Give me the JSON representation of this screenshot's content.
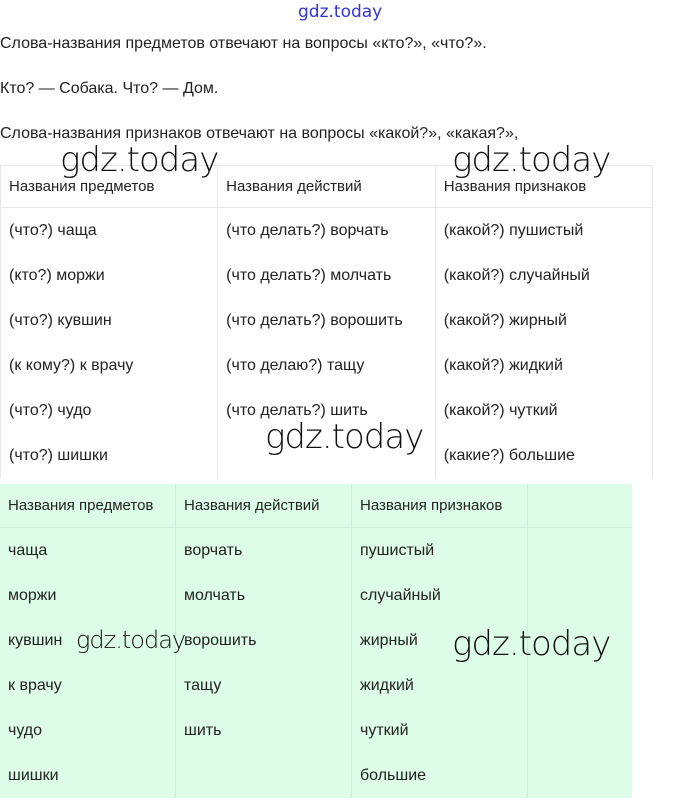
{
  "watermark": "gdz.today",
  "paragraphs": [
    "Слова-названия предметов отвечают на вопросы «кто?», «что?».",
    "Кто? — Собака. Что? — Дом.",
    "Слова-названия признаков отвечают на вопросы «какой?», «какая?»,"
  ],
  "table1": {
    "headers": [
      "Названия предметов",
      "Названия действий",
      "Названия признаков"
    ],
    "rows": [
      [
        "(что?) чаща",
        "(что делать?) ворчать",
        "(какой?) пушистый"
      ],
      [
        "(кто?) моржи",
        "(что делать?) молчать",
        "(какой?) случайный"
      ],
      [
        "(что?) кувшин",
        "(что делать?) ворошить",
        "(какой?) жирный"
      ],
      [
        "(к кому?) к врачу",
        "(что делаю?) тащу",
        "(какой?) жидкий"
      ],
      [
        "(что?) чудо",
        "(что делать?) шить",
        "(какой?) чуткий"
      ],
      [
        "(что?) шишки",
        "",
        "(какие?) большие"
      ]
    ]
  },
  "table2": {
    "background": "#ddfde8",
    "headers": [
      "Названия предметов",
      "Названия действий",
      "Названия признаков"
    ],
    "rows": [
      [
        "чаща",
        "ворчать",
        "пушистый"
      ],
      [
        "моржи",
        "молчать",
        "случайный"
      ],
      [
        "кувшин",
        "ворошить",
        "жирный"
      ],
      [
        "к врачу",
        "тащу",
        "жидкий"
      ],
      [
        "чудо",
        "шить",
        "чуткий"
      ],
      [
        "шишки",
        "",
        "большие"
      ]
    ]
  }
}
